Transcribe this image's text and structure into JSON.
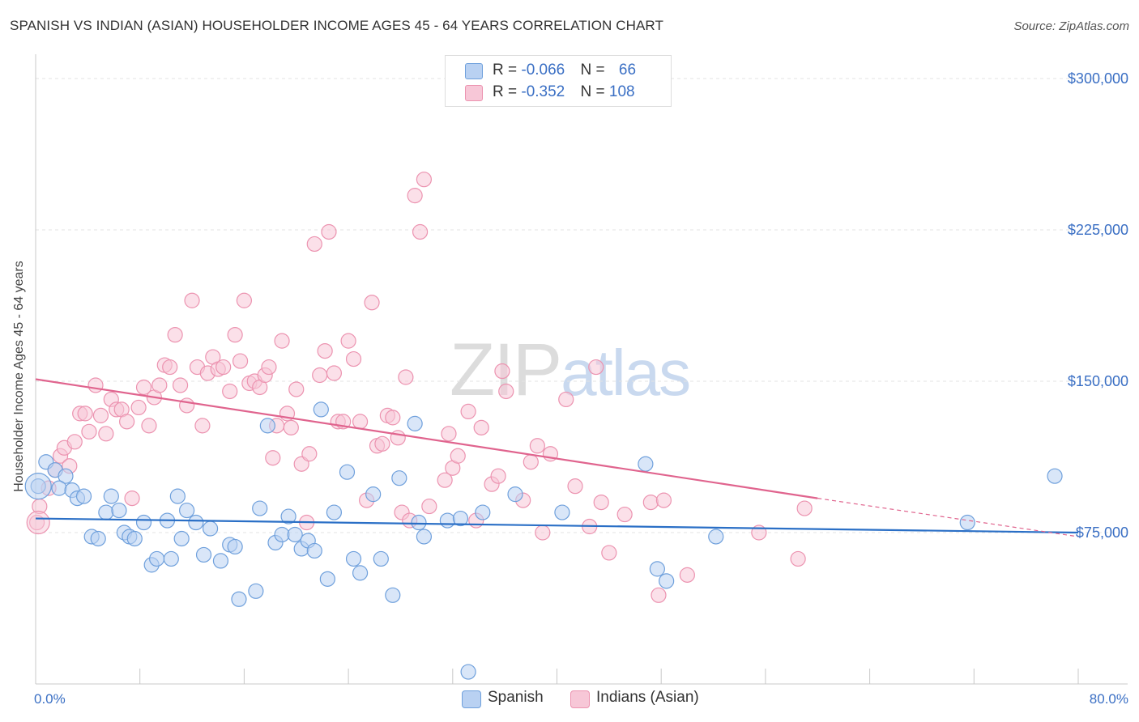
{
  "title": "SPANISH VS INDIAN (ASIAN) HOUSEHOLDER INCOME AGES 45 - 64 YEARS CORRELATION CHART",
  "source": "Source: ZipAtlas.com",
  "watermark": {
    "part1": "ZIP",
    "part2": "atlas"
  },
  "colors": {
    "spanish": "#6fa0dc",
    "spanish_fill": "#b9d1f2",
    "indian": "#ec93b0",
    "indian_fill": "#f7c7d7",
    "spanish_line": "#2a6fc6",
    "indian_line": "#e0648e",
    "axis_text": "#3a6fc4"
  },
  "legend": {
    "spanish": {
      "r_label": "R = ",
      "r_value": "-0.066",
      "n_label": "N = ",
      "n_value": "66"
    },
    "indian": {
      "r_label": "R = ",
      "r_value": "-0.352",
      "n_label": "N = ",
      "n_value": "108"
    }
  },
  "bottom_legend": {
    "spanish": "Spanish",
    "indian": "Indians (Asian)"
  },
  "chart_data": {
    "type": "scatter",
    "title": "SPANISH VS INDIAN (ASIAN) HOUSEHOLDER INCOME AGES 45 - 64 YEARS CORRELATION CHART",
    "xlabel": "",
    "ylabel": "Householder Income Ages 45 - 64 years",
    "xlim": [
      0,
      80
    ],
    "ylim": [
      0,
      300000
    ],
    "x_tick_labels": [
      "0.0%",
      "80.0%"
    ],
    "y_ticks": [
      75000,
      150000,
      225000,
      300000
    ],
    "y_tick_labels": [
      "$75,000",
      "$150,000",
      "$225,000",
      "$300,000"
    ],
    "grid": true,
    "series": [
      {
        "name": "Spanish",
        "trend": {
          "x0": 0,
          "y0": 82000,
          "x1": 80,
          "y1": 75000
        },
        "points": [
          [
            0.2,
            98000
          ],
          [
            0.8,
            110000
          ],
          [
            1.5,
            106000
          ],
          [
            2.3,
            103000
          ],
          [
            1.8,
            97000
          ],
          [
            2.8,
            96000
          ],
          [
            3.2,
            92000
          ],
          [
            3.7,
            93000
          ],
          [
            4.3,
            73000
          ],
          [
            4.8,
            72000
          ],
          [
            5.4,
            85000
          ],
          [
            5.8,
            93000
          ],
          [
            6.4,
            86000
          ],
          [
            6.8,
            75000
          ],
          [
            7.2,
            73000
          ],
          [
            7.6,
            72000
          ],
          [
            8.3,
            80000
          ],
          [
            8.9,
            59000
          ],
          [
            9.3,
            62000
          ],
          [
            10.1,
            81000
          ],
          [
            10.4,
            62000
          ],
          [
            10.9,
            93000
          ],
          [
            11.2,
            72000
          ],
          [
            11.6,
            86000
          ],
          [
            12.3,
            80000
          ],
          [
            12.9,
            64000
          ],
          [
            13.4,
            77000
          ],
          [
            14.2,
            61000
          ],
          [
            14.9,
            69000
          ],
          [
            15.3,
            68000
          ],
          [
            15.6,
            42000
          ],
          [
            16.9,
            46000
          ],
          [
            17.2,
            87000
          ],
          [
            17.8,
            128000
          ],
          [
            18.4,
            70000
          ],
          [
            18.9,
            74000
          ],
          [
            19.4,
            83000
          ],
          [
            19.9,
            74000
          ],
          [
            20.4,
            67000
          ],
          [
            20.9,
            71000
          ],
          [
            21.4,
            66000
          ],
          [
            21.9,
            136000
          ],
          [
            22.4,
            52000
          ],
          [
            22.9,
            85000
          ],
          [
            23.9,
            105000
          ],
          [
            24.4,
            62000
          ],
          [
            24.9,
            55000
          ],
          [
            25.9,
            94000
          ],
          [
            26.5,
            62000
          ],
          [
            27.4,
            44000
          ],
          [
            27.9,
            102000
          ],
          [
            29.1,
            129000
          ],
          [
            29.4,
            80000
          ],
          [
            29.8,
            73000
          ],
          [
            31.6,
            81000
          ],
          [
            32.6,
            82000
          ],
          [
            33.2,
            6000
          ],
          [
            34.3,
            85000
          ],
          [
            36.8,
            94000
          ],
          [
            40.4,
            85000
          ],
          [
            46.8,
            109000
          ],
          [
            47.7,
            57000
          ],
          [
            48.4,
            51000
          ],
          [
            52.2,
            73000
          ],
          [
            71.5,
            80000
          ],
          [
            78.2,
            103000
          ]
        ]
      },
      {
        "name": "Indians (Asian)",
        "trend": {
          "x0": 0,
          "y0": 151000,
          "x1": 60,
          "y1": 92000,
          "dash_to_x": 80,
          "dash_to_y": 73000
        },
        "points": [
          [
            0.1,
            80000
          ],
          [
            0.3,
            88000
          ],
          [
            1.0,
            97000
          ],
          [
            1.5,
            106000
          ],
          [
            1.9,
            113000
          ],
          [
            2.2,
            117000
          ],
          [
            2.6,
            108000
          ],
          [
            3.0,
            120000
          ],
          [
            3.4,
            134000
          ],
          [
            3.8,
            134000
          ],
          [
            4.1,
            125000
          ],
          [
            4.6,
            148000
          ],
          [
            5.0,
            133000
          ],
          [
            5.4,
            124000
          ],
          [
            5.8,
            141000
          ],
          [
            6.2,
            136000
          ],
          [
            6.6,
            136000
          ],
          [
            7.0,
            130000
          ],
          [
            7.4,
            92000
          ],
          [
            7.9,
            137000
          ],
          [
            8.3,
            147000
          ],
          [
            8.7,
            128000
          ],
          [
            9.1,
            142000
          ],
          [
            9.5,
            148000
          ],
          [
            9.9,
            158000
          ],
          [
            10.3,
            157000
          ],
          [
            10.7,
            173000
          ],
          [
            11.1,
            148000
          ],
          [
            11.6,
            138000
          ],
          [
            12.0,
            190000
          ],
          [
            12.4,
            157000
          ],
          [
            12.8,
            128000
          ],
          [
            13.2,
            154000
          ],
          [
            13.6,
            162000
          ],
          [
            14.0,
            156000
          ],
          [
            14.4,
            157000
          ],
          [
            14.9,
            145000
          ],
          [
            15.3,
            173000
          ],
          [
            15.7,
            160000
          ],
          [
            16.0,
            190000
          ],
          [
            16.4,
            149000
          ],
          [
            16.8,
            150000
          ],
          [
            17.2,
            147000
          ],
          [
            17.6,
            153000
          ],
          [
            17.9,
            157000
          ],
          [
            18.2,
            112000
          ],
          [
            18.5,
            128000
          ],
          [
            18.9,
            170000
          ],
          [
            19.3,
            134000
          ],
          [
            19.6,
            127000
          ],
          [
            20.0,
            146000
          ],
          [
            20.4,
            109000
          ],
          [
            20.8,
            80000
          ],
          [
            21.0,
            114000
          ],
          [
            21.4,
            218000
          ],
          [
            21.8,
            153000
          ],
          [
            22.2,
            165000
          ],
          [
            22.5,
            224000
          ],
          [
            22.9,
            154000
          ],
          [
            23.2,
            130000
          ],
          [
            23.6,
            130000
          ],
          [
            24.0,
            170000
          ],
          [
            24.4,
            161000
          ],
          [
            24.9,
            130000
          ],
          [
            25.4,
            91000
          ],
          [
            25.8,
            189000
          ],
          [
            26.2,
            118000
          ],
          [
            26.6,
            119000
          ],
          [
            27.0,
            133000
          ],
          [
            27.4,
            132000
          ],
          [
            27.8,
            122000
          ],
          [
            28.1,
            85000
          ],
          [
            28.4,
            152000
          ],
          [
            28.7,
            81000
          ],
          [
            29.1,
            242000
          ],
          [
            29.5,
            224000
          ],
          [
            29.8,
            250000
          ],
          [
            30.2,
            88000
          ],
          [
            31.4,
            101000
          ],
          [
            31.7,
            124000
          ],
          [
            32.0,
            107000
          ],
          [
            32.4,
            113000
          ],
          [
            33.2,
            135000
          ],
          [
            33.8,
            81000
          ],
          [
            34.2,
            127000
          ],
          [
            35.0,
            99000
          ],
          [
            35.5,
            103000
          ],
          [
            35.8,
            155000
          ],
          [
            36.1,
            145000
          ],
          [
            37.4,
            91000
          ],
          [
            38.0,
            110000
          ],
          [
            38.5,
            118000
          ],
          [
            38.9,
            75000
          ],
          [
            39.5,
            114000
          ],
          [
            40.7,
            141000
          ],
          [
            41.4,
            98000
          ],
          [
            42.5,
            78000
          ],
          [
            43.0,
            157000
          ],
          [
            43.4,
            90000
          ],
          [
            44.0,
            65000
          ],
          [
            45.2,
            84000
          ],
          [
            47.2,
            90000
          ],
          [
            47.8,
            44000
          ],
          [
            48.2,
            91000
          ],
          [
            50.0,
            54000
          ],
          [
            55.5,
            75000
          ],
          [
            58.5,
            62000
          ],
          [
            59.0,
            87000
          ]
        ]
      }
    ]
  }
}
